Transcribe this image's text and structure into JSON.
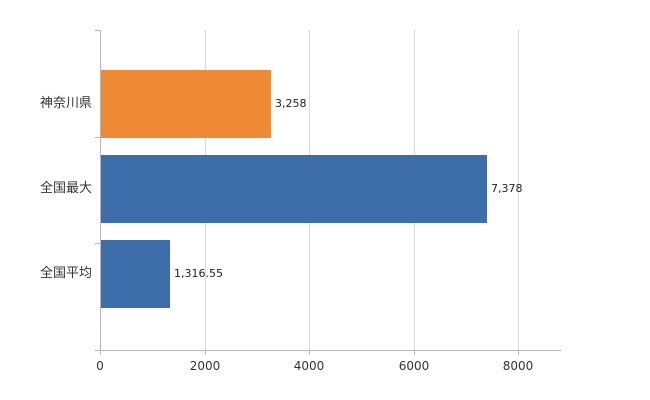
{
  "chart_data": {
    "type": "bar",
    "orientation": "horizontal",
    "title": "",
    "categories": [
      "神奈川県",
      "全国最大",
      "全国平均"
    ],
    "values": [
      3258,
      7378,
      1316.55
    ],
    "value_labels": [
      "3,258",
      "7,378",
      "1,316.55"
    ],
    "bar_colors": [
      "#ed8a33",
      "#3d6ea9",
      "#3d6ea9"
    ],
    "xlim": [
      0,
      8800
    ],
    "x_ticks": [
      0,
      2000,
      4000,
      6000,
      8000
    ],
    "x_tick_labels": [
      "0",
      "2000",
      "4000",
      "6000",
      "8000"
    ],
    "grid": true,
    "legend": "none"
  },
  "colors": {
    "orange": "#ed8a33",
    "blue": "#3d6ea9",
    "grid": "#d9d9d9",
    "axis": "#b9b9b9",
    "text": "#333333",
    "background": "#ffffff"
  }
}
